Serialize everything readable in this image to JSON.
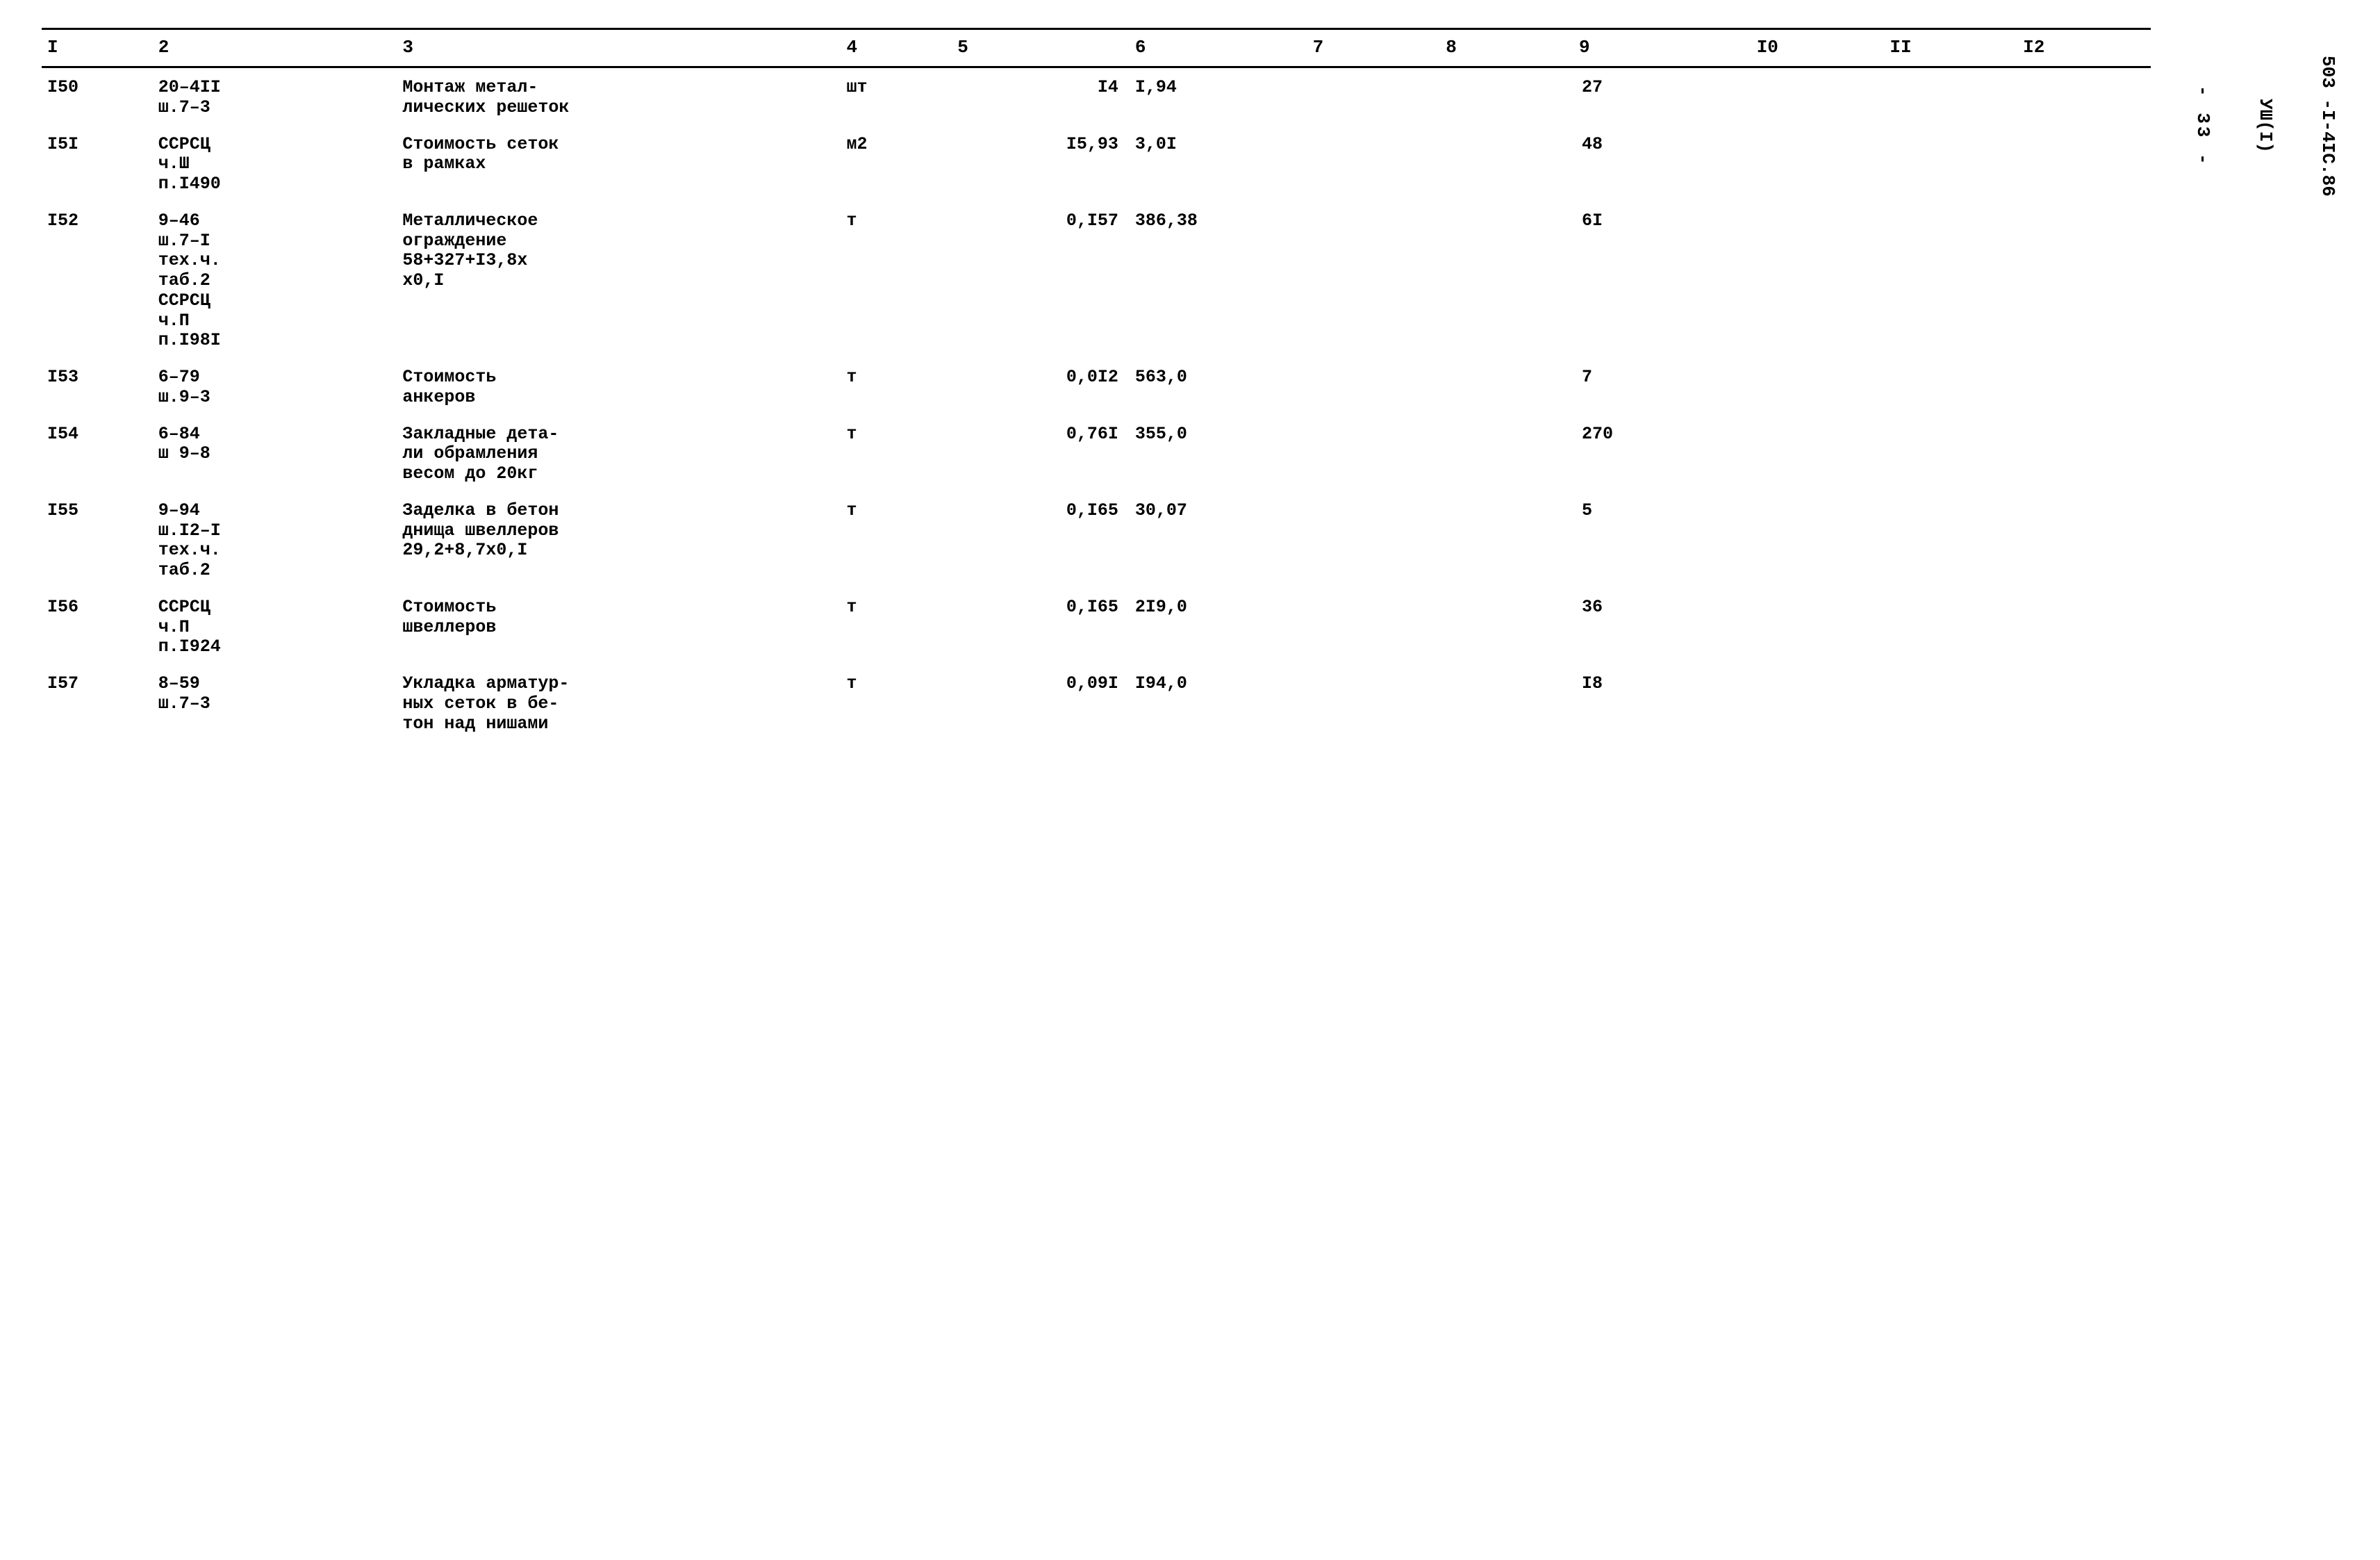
{
  "document": {
    "side_label_1": "503 -I-4IC.86",
    "side_label_2": "УШ(I)",
    "page_number": "- 33 -"
  },
  "table": {
    "background_color": "#ffffff",
    "text_color": "#000000",
    "border_color": "#000000",
    "font_family": "Courier New",
    "font_size_pt": 19,
    "font_weight": "bold",
    "columns": [
      {
        "key": "c1",
        "label": "I",
        "width_pct": 5,
        "align": "left"
      },
      {
        "key": "c2",
        "label": "2",
        "width_pct": 11,
        "align": "left"
      },
      {
        "key": "c3",
        "label": "3",
        "width_pct": 20,
        "align": "left"
      },
      {
        "key": "c4",
        "label": "4",
        "width_pct": 5,
        "align": "left"
      },
      {
        "key": "c5",
        "label": "5",
        "width_pct": 8,
        "align": "right"
      },
      {
        "key": "c6",
        "label": "6",
        "width_pct": 8,
        "align": "left"
      },
      {
        "key": "c7",
        "label": "7",
        "width_pct": 6,
        "align": "left"
      },
      {
        "key": "c8",
        "label": "8",
        "width_pct": 6,
        "align": "left"
      },
      {
        "key": "c9",
        "label": "9",
        "width_pct": 8,
        "align": "left"
      },
      {
        "key": "c10",
        "label": "I0",
        "width_pct": 6,
        "align": "left"
      },
      {
        "key": "c11",
        "label": "II",
        "width_pct": 6,
        "align": "left"
      },
      {
        "key": "c12",
        "label": "I2",
        "width_pct": 6,
        "align": "left"
      }
    ],
    "rows": [
      {
        "c1": "I50",
        "c2": "20–4II\nш.7–3",
        "c3": "Монтаж метал-\nлических решеток",
        "c4": "шт",
        "c5": "I4",
        "c6": "I,94",
        "c7": "",
        "c8": "",
        "c9": "27",
        "c10": "",
        "c11": "",
        "c12": ""
      },
      {
        "c1": "I5I",
        "c2": "ССРСЦ\nч.Ш\nп.I490",
        "c3": "Стоимость сеток\nв рамках",
        "c4": "м2",
        "c5": "I5,93",
        "c6": "3,0I",
        "c7": "",
        "c8": "",
        "c9": "48",
        "c10": "",
        "c11": "",
        "c12": ""
      },
      {
        "c1": "I52",
        "c2": "9–46\nш.7–I\nтех.ч.\nтаб.2\nССРСЦ\nч.П\nп.I98I",
        "c3": "Металлическое\nограждение\n58+327+I3,8x\nx0,I",
        "c4": "т",
        "c5": "0,I57",
        "c6": "386,38",
        "c7": "",
        "c8": "",
        "c9": "6I",
        "c10": "",
        "c11": "",
        "c12": ""
      },
      {
        "c1": "I53",
        "c2": "6–79\nш.9–3",
        "c3": "Стоимость\nанкеров",
        "c4": "т",
        "c5": "0,0I2",
        "c6": "563,0",
        "c7": "",
        "c8": "",
        "c9": "7",
        "c10": "",
        "c11": "",
        "c12": ""
      },
      {
        "c1": "I54",
        "c2": "6–84\nш 9–8",
        "c3": "Закладные дета-\nли обрамления\nвесом до 20кг",
        "c4": "т",
        "c5": "0,76I",
        "c6": "355,0",
        "c7": "",
        "c8": "",
        "c9": "270",
        "c10": "",
        "c11": "",
        "c12": ""
      },
      {
        "c1": "I55",
        "c2": "9–94\nш.I2–I\nтех.ч.\nтаб.2",
        "c3": "Заделка в бетон\nднища швеллеров\n29,2+8,7x0,I",
        "c4": "т",
        "c5": "0,I65",
        "c6": "30,07",
        "c7": "",
        "c8": "",
        "c9": "5",
        "c10": "",
        "c11": "",
        "c12": ""
      },
      {
        "c1": "I56",
        "c2": "ССРСЦ\nч.П\nп.I924",
        "c3": "Стоимость\nшвеллеров",
        "c4": "т",
        "c5": "0,I65",
        "c6": "2I9,0",
        "c7": "",
        "c8": "",
        "c9": "36",
        "c10": "",
        "c11": "",
        "c12": ""
      },
      {
        "c1": "I57",
        "c2": "8–59\nш.7–3",
        "c3": "Укладка арматур-\nных сеток в бе-\nтон над нишами",
        "c4": "т",
        "c5": "0,09I",
        "c6": "I94,0",
        "c7": "",
        "c8": "",
        "c9": "I8",
        "c10": "",
        "c11": "",
        "c12": ""
      }
    ]
  }
}
